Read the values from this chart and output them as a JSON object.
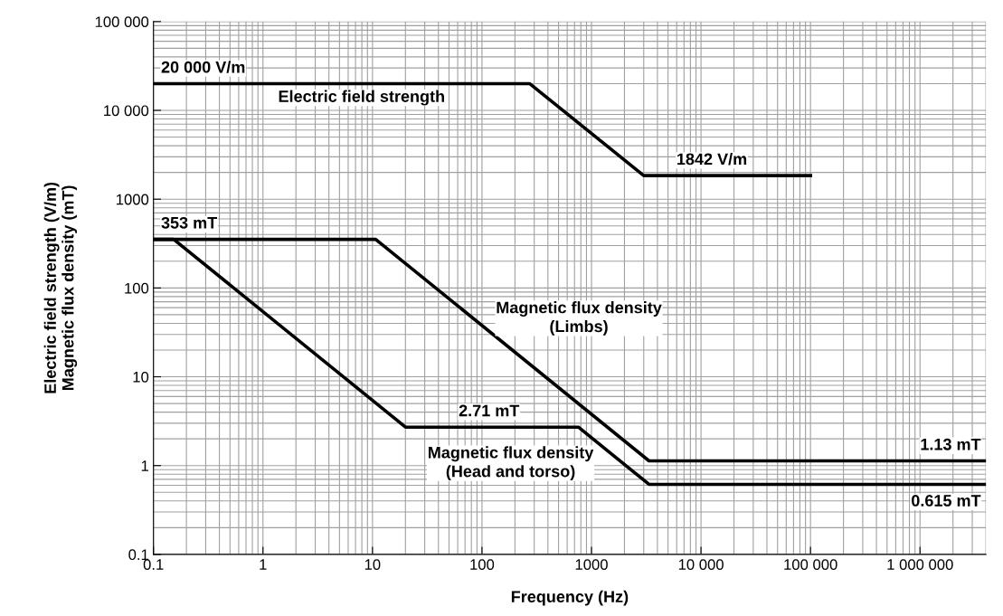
{
  "chart_data": {
    "type": "line",
    "xlabel": "Frequency (Hz)",
    "ylabel": "Electric field strength (V/m)\nMagnetic flux density (mT)",
    "log": "xy",
    "grid": true,
    "marker": "none",
    "line_style": "solid",
    "xlim": [
      0.1,
      4000000
    ],
    "ylim": [
      0.1,
      100000
    ],
    "xticks": [
      0.1,
      1,
      10,
      100,
      1000,
      {
        "value": 10000,
        "label": "10 000"
      },
      {
        "value": 100000,
        "label": "100 000"
      },
      {
        "value": 1000000,
        "label": "1 000 000"
      }
    ],
    "yticks": [
      0.1,
      1,
      10,
      100,
      1000,
      {
        "value": 10000,
        "label": "10 000"
      },
      {
        "value": 100000,
        "label": "100 000"
      }
    ],
    "series": [
      {
        "name": "Electric field strength",
        "color": "#000000",
        "x": [
          0.1,
          272,
          3000,
          100000
        ],
        "values": [
          20000,
          20000,
          1842,
          1842
        ]
      },
      {
        "name": "Magnetic flux density\n(Limbs)",
        "color": "#000000",
        "x": [
          0.1,
          10.7,
          3350,
          4000000
        ],
        "values": [
          353,
          353,
          1.13,
          1.13
        ]
      },
      {
        "name": "Magnetic flux density\n(Head and torso)",
        "color": "#000000",
        "x": [
          0.1,
          0.153,
          20,
          759,
          3350,
          4000000
        ],
        "values": [
          353,
          353,
          2.71,
          2.71,
          0.615,
          0.615
        ]
      }
    ],
    "annotations": [
      {
        "text": "20 000 V/m",
        "x": 0.1,
        "y": 20000
      },
      {
        "text": "1842 V/m",
        "x": 3000,
        "y": 1842
      },
      {
        "text": "353 mT",
        "x": 0.1,
        "y": 353
      },
      {
        "text": "2.71 mT",
        "x": 116,
        "y": 2.71
      },
      {
        "text": "1.13 mT",
        "x": 4000000,
        "y": 1.13
      },
      {
        "text": "0.615 mT",
        "x": 4000000,
        "y": 0.615
      }
    ]
  }
}
